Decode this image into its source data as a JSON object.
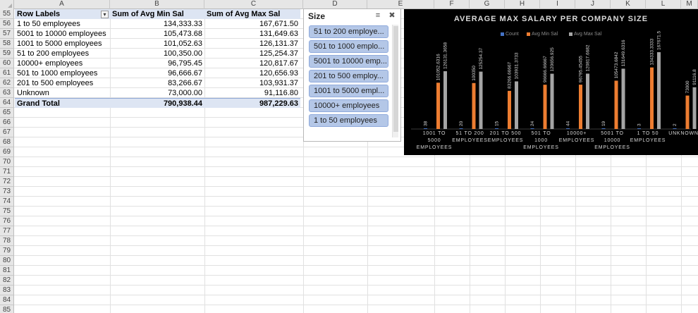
{
  "columns": [
    "A",
    "B",
    "C",
    "D",
    "E",
    "F",
    "G",
    "H",
    "I",
    "J",
    "K",
    "L",
    "M"
  ],
  "rows": [
    55,
    56,
    57,
    58,
    59,
    60,
    61,
    62,
    63,
    64,
    65,
    66,
    67,
    68,
    69,
    70,
    71,
    72,
    73,
    74,
    75,
    76,
    77,
    78,
    79,
    80,
    81,
    82,
    83,
    84,
    85
  ],
  "pivot": {
    "header": {
      "row_labels": "Row Labels",
      "col_b": "Sum of Avg Min Sal",
      "col_c": "Sum of Avg Max Sal"
    },
    "rows": [
      {
        "label": "1 to 50 employees",
        "min": "134,333.33",
        "max": "167,671.50"
      },
      {
        "label": "5001 to 10000 employees",
        "min": "105,473.68",
        "max": "131,649.63"
      },
      {
        "label": "1001 to 5000 employees",
        "min": "101,052.63",
        "max": "126,131.37"
      },
      {
        "label": "51 to 200 employees",
        "min": "100,350.00",
        "max": "125,254.37"
      },
      {
        "label": "10000+ employees",
        "min": "96,795.45",
        "max": "120,817.67"
      },
      {
        "label": "501 to 1000 employees",
        "min": "96,666.67",
        "max": "120,656.93"
      },
      {
        "label": "201 to 500 employees",
        "min": "83,266.67",
        "max": "103,931.37"
      },
      {
        "label": "Unknown",
        "min": "73,000.00",
        "max": "91,116.80"
      }
    ],
    "total": {
      "label": "Grand Total",
      "min": "790,938.44",
      "max": "987,229.63"
    }
  },
  "slicer": {
    "title": "Size",
    "items": [
      "51 to 200 employe...",
      "501 to 1000 emplo...",
      "5001 to 10000 emp...",
      "201 to 500 employ...",
      "1001 to 5000 empl...",
      "10000+ employees",
      "1 to 50 employees"
    ]
  },
  "colors": {
    "count": "#4472c4",
    "avg_min": "#ed7d31",
    "avg_max": "#a5a5a5",
    "pivot_header": "#dde5f3",
    "slicer_item": "#b4c7e7"
  },
  "chart_data": {
    "type": "bar",
    "title": "AVERAGE MAX SALARY PER COMPANY SIZE",
    "legend_position": "top",
    "categories": [
      [
        "1001 TO",
        "5000",
        "EMPLOYEES"
      ],
      [
        "51 TO 200",
        "EMPLOYEES"
      ],
      [
        "201 TO 500",
        "EMPLOYEES"
      ],
      [
        "501 TO",
        "1000",
        "EMPLOYEES"
      ],
      [
        "10000+",
        "EMPLOYEES"
      ],
      [
        "5001 TO",
        "10000",
        "EMPLOYEES"
      ],
      [
        "1 TO 50",
        "EMPLOYEES"
      ],
      [
        "UNKNOWN"
      ]
    ],
    "series": [
      {
        "name": "Count",
        "values": [
          38,
          20,
          15,
          24,
          44,
          19,
          3,
          2
        ],
        "labels": [
          "38",
          "20",
          "15",
          "24",
          "44",
          "19",
          "3",
          "2"
        ]
      },
      {
        "name": "Avg Min Sal",
        "values": [
          101052.6316,
          100350,
          83266.66667,
          96666.66667,
          96795.45455,
          105473.6842,
          134333.3333,
          73000
        ],
        "labels": [
          "101052.6316",
          "100350",
          "83266.66667",
          "96666.66667",
          "96795.45455",
          "105473.6842",
          "134333.3333",
          "73000"
        ]
      },
      {
        "name": "Avg Max Sal",
        "values": [
          126131.3658,
          125254.37,
          103931.3733,
          120656.925,
          120817.6682,
          131649.6316,
          167671.5,
          91116.8
        ],
        "labels": [
          "126131.3658",
          "125254.37",
          "103931.3733",
          "120656.925",
          "120817.6682",
          "131649.6316",
          "167671.5",
          "91116.8"
        ]
      }
    ],
    "ylim": [
      0,
      200000
    ],
    "grid": false
  }
}
